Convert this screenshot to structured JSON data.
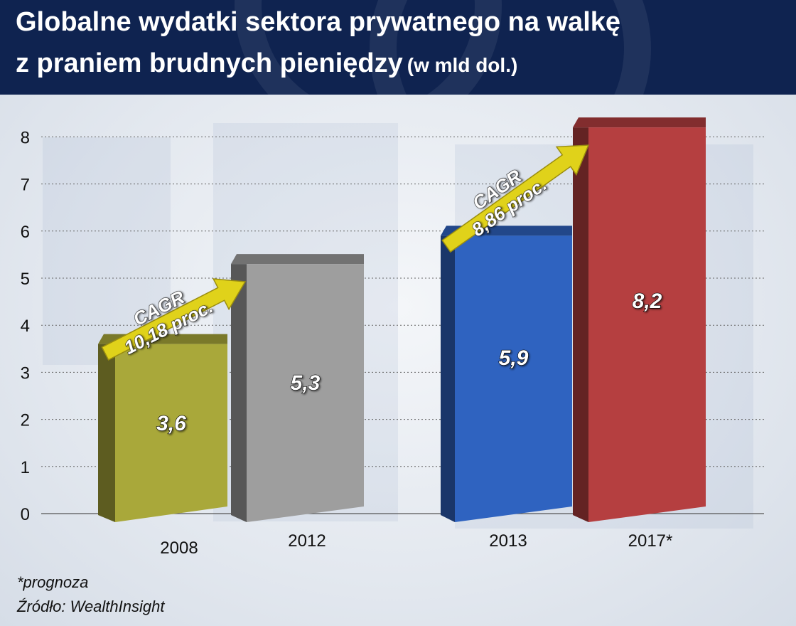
{
  "header": {
    "title_line1": "Globalne wydatki sektora prywatnego na walkę",
    "title_line2": "z praniem brudnych pieniędzy",
    "title_unit": "(w mld dol.)"
  },
  "chart_data": {
    "type": "bar",
    "categories": [
      "2008",
      "2012",
      "2013",
      "2017*"
    ],
    "values": [
      3.6,
      5.3,
      5.9,
      8.2
    ],
    "value_labels": [
      "3,6",
      "5,3",
      "5,9",
      "8,2"
    ],
    "ylim": [
      0,
      8
    ],
    "yticks": [
      "0",
      "1",
      "2",
      "3",
      "4",
      "5",
      "6",
      "7",
      "8"
    ],
    "grid": true,
    "colors": [
      "#a9a83a",
      "#9e9e9e",
      "#2f63c0",
      "#b53f40"
    ],
    "annotations": [
      {
        "line1": "CAGR",
        "line2": "10,18 proc.",
        "from": "2008",
        "to": "2012"
      },
      {
        "line1": "CAGR",
        "line2": "8,86 proc.",
        "from": "2013",
        "to": "2017*"
      }
    ],
    "arrow_color": "#e0d21a"
  },
  "footer": {
    "footnote": "*prognoza",
    "source": "Źródło: WealthInsight"
  }
}
